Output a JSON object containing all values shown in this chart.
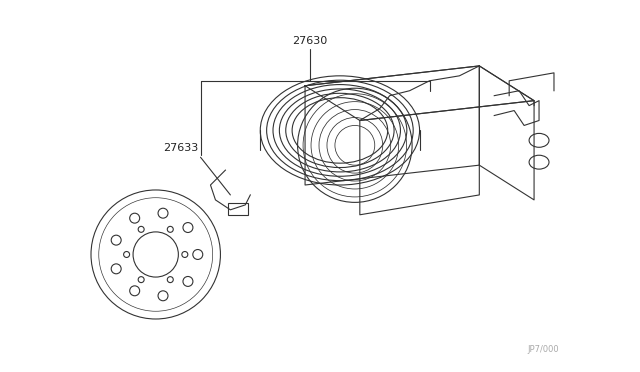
{
  "background_color": "#ffffff",
  "border_color": "#e0e0e0",
  "label_27630": "27630",
  "label_27633": "27633",
  "watermark": "JP7/000",
  "line_color": "#333333",
  "label_color": "#222222",
  "figsize": [
    6.4,
    3.72
  ],
  "dpi": 100
}
